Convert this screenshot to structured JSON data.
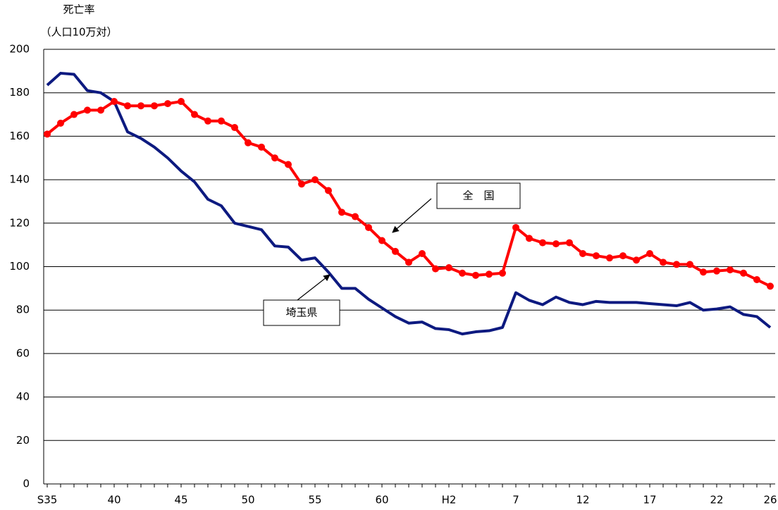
{
  "chart_data": {
    "type": "line",
    "y_label_line1": "死亡率",
    "y_label_line2": "（人口10万対）",
    "categories": [
      "S35",
      null,
      null,
      null,
      null,
      "40",
      null,
      null,
      null,
      null,
      "45",
      null,
      null,
      null,
      null,
      "50",
      null,
      null,
      null,
      null,
      "55",
      null,
      null,
      null,
      null,
      "60",
      null,
      null,
      null,
      null,
      "H2",
      null,
      null,
      null,
      null,
      "7",
      null,
      null,
      null,
      null,
      "12",
      null,
      null,
      null,
      null,
      "17",
      null,
      null,
      null,
      null,
      "22",
      null,
      null,
      null,
      "26"
    ],
    "series": [
      {
        "name": "埼玉県",
        "color": "#0d1a80",
        "marker": false,
        "values": [
          183.5,
          189,
          188.5,
          181,
          180,
          176,
          162,
          159,
          155,
          150,
          144,
          139,
          131,
          128,
          120,
          118.5,
          117,
          109.5,
          109,
          103,
          104,
          97.5,
          90,
          90,
          85,
          81,
          77,
          74,
          74.5,
          71.5,
          71,
          69,
          70,
          70.5,
          72,
          88,
          84.5,
          82.5,
          86,
          83.5,
          82.5,
          84,
          83.5,
          83.5,
          83.5,
          83,
          82.5,
          82,
          83.5,
          80,
          80.5,
          81.5,
          78,
          77,
          72
        ]
      },
      {
        "name": "全　国",
        "color": "#ff0000",
        "marker": true,
        "values": [
          161,
          166,
          170,
          172,
          172,
          176,
          174,
          174,
          174,
          175,
          176,
          170,
          167,
          167,
          164,
          157,
          155,
          150,
          147,
          138,
          140,
          135,
          125,
          123,
          118,
          112,
          107,
          102,
          106,
          99,
          99.5,
          97,
          96,
          96.5,
          97,
          118,
          113,
          111,
          110.5,
          111,
          106,
          105,
          104,
          105,
          103,
          106,
          102,
          101,
          101,
          97.5,
          98,
          98.5,
          97,
          94,
          91
        ]
      }
    ],
    "ylim": [
      0,
      200
    ],
    "yticks": [
      0,
      20,
      40,
      60,
      80,
      100,
      120,
      140,
      160,
      180,
      200
    ],
    "grid": true
  }
}
